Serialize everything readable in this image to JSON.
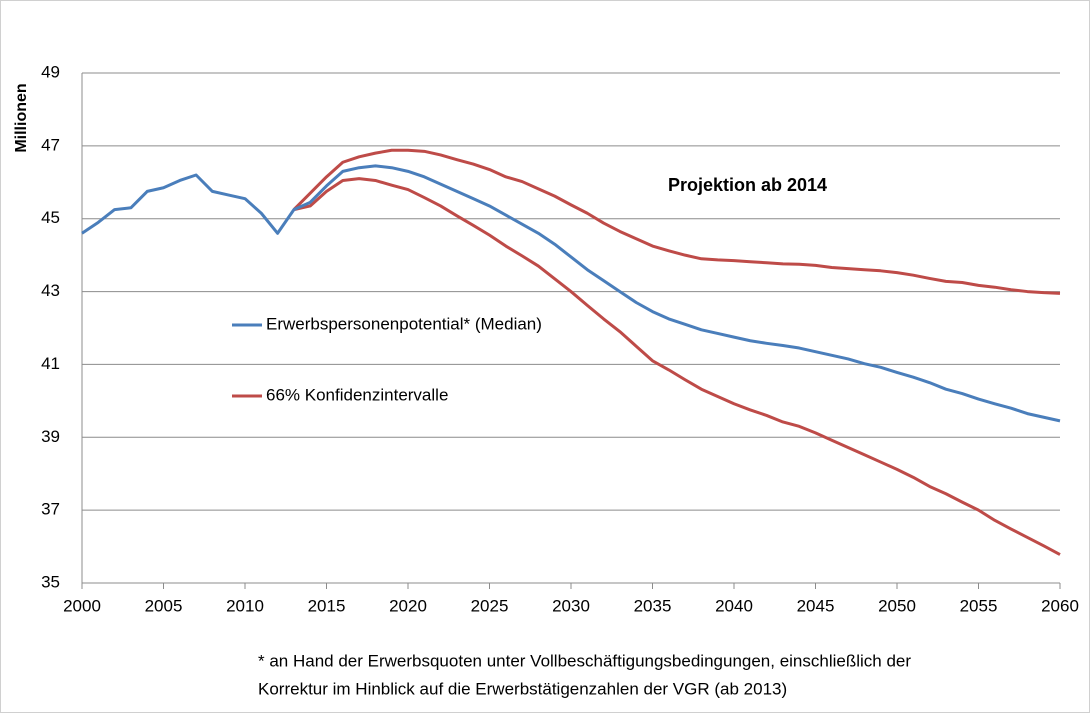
{
  "chart_data": {
    "type": "line",
    "ylabel": "Millionen",
    "annotation": "Projektion ab 2014",
    "footnote": [
      "* an Hand der Erwerbsquoten unter Vollbeschäftigungsbedingungen,  einschließlich der",
      "Korrektur im Hinblick auf die Erwerbstätigenzahlen der VGR (ab 2013)"
    ],
    "xlim": [
      2000,
      2060
    ],
    "ylim": [
      35,
      49
    ],
    "xticks": [
      2000,
      2005,
      2010,
      2015,
      2020,
      2025,
      2030,
      2035,
      2040,
      2045,
      2050,
      2055,
      2060
    ],
    "yticks": [
      35,
      37,
      39,
      41,
      43,
      45,
      47,
      49
    ],
    "grid": true,
    "series": [
      {
        "name": "Erwerbspersonenpotential* (Median)",
        "color": "#4a7ebb",
        "x": [
          2000,
          2001,
          2002,
          2003,
          2004,
          2005,
          2006,
          2007,
          2008,
          2009,
          2010,
          2011,
          2012,
          2013,
          2014,
          2015,
          2016,
          2017,
          2018,
          2019,
          2020,
          2021,
          2022,
          2023,
          2024,
          2025,
          2026,
          2027,
          2028,
          2029,
          2030,
          2031,
          2032,
          2033,
          2034,
          2035,
          2036,
          2037,
          2038,
          2039,
          2040,
          2041,
          2042,
          2043,
          2044,
          2045,
          2046,
          2047,
          2048,
          2049,
          2050,
          2051,
          2052,
          2053,
          2054,
          2055,
          2056,
          2057,
          2058,
          2059,
          2060
        ],
        "values": [
          44.6,
          44.9,
          45.25,
          45.3,
          45.75,
          45.85,
          46.05,
          46.2,
          45.75,
          45.65,
          45.55,
          45.15,
          44.6,
          45.25,
          45.45,
          45.9,
          46.3,
          46.4,
          46.45,
          46.4,
          46.3,
          46.15,
          45.95,
          45.75,
          45.55,
          45.35,
          45.1,
          44.85,
          44.6,
          44.3,
          43.95,
          43.6,
          43.3,
          43.0,
          42.7,
          42.45,
          42.25,
          42.1,
          41.95,
          41.85,
          41.75,
          41.65,
          41.58,
          41.52,
          41.45,
          41.35,
          41.25,
          41.15,
          41.02,
          40.92,
          40.78,
          40.65,
          40.5,
          40.32,
          40.2,
          40.05,
          39.92,
          39.8,
          39.65,
          39.55,
          39.45
        ]
      }
    ],
    "band": {
      "name": "66% Konfidenzintervalle",
      "color": "#be4b48",
      "x": [
        2013,
        2014,
        2015,
        2016,
        2017,
        2018,
        2019,
        2020,
        2021,
        2022,
        2023,
        2024,
        2025,
        2026,
        2027,
        2028,
        2029,
        2030,
        2031,
        2032,
        2033,
        2034,
        2035,
        2036,
        2037,
        2038,
        2039,
        2040,
        2041,
        2042,
        2043,
        2044,
        2045,
        2046,
        2047,
        2048,
        2049,
        2050,
        2051,
        2052,
        2053,
        2054,
        2055,
        2056,
        2057,
        2058,
        2059,
        2060
      ],
      "upper": [
        45.25,
        45.7,
        46.15,
        46.55,
        46.7,
        46.8,
        46.88,
        46.88,
        46.85,
        46.75,
        46.62,
        46.5,
        46.35,
        46.15,
        46.02,
        45.82,
        45.62,
        45.38,
        45.15,
        44.88,
        44.65,
        44.45,
        44.25,
        44.12,
        44.0,
        43.9,
        43.87,
        43.85,
        43.82,
        43.79,
        43.76,
        43.75,
        43.72,
        43.66,
        43.63,
        43.6,
        43.57,
        43.52,
        43.45,
        43.36,
        43.28,
        43.25,
        43.17,
        43.12,
        43.05,
        43.0,
        42.97,
        42.95
      ],
      "lower": [
        45.25,
        45.35,
        45.75,
        46.05,
        46.1,
        46.05,
        45.92,
        45.8,
        45.58,
        45.35,
        45.08,
        44.82,
        44.55,
        44.25,
        43.98,
        43.7,
        43.35,
        43.0,
        42.62,
        42.25,
        41.9,
        41.5,
        41.1,
        40.85,
        40.58,
        40.32,
        40.12,
        39.92,
        39.75,
        39.6,
        39.42,
        39.3,
        39.12,
        38.92,
        38.72,
        38.52,
        38.32,
        38.12,
        37.9,
        37.65,
        37.45,
        37.22,
        37.0,
        36.72,
        36.48,
        36.25,
        36.02,
        35.78
      ]
    }
  }
}
